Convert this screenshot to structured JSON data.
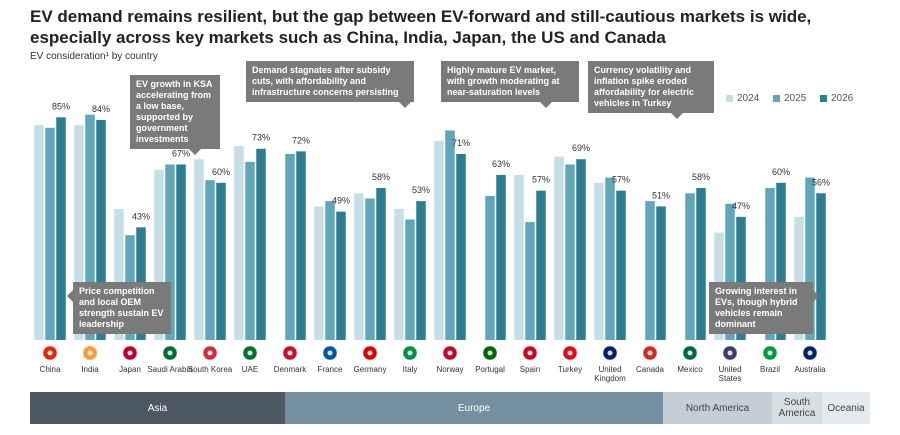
{
  "chart_data": {
    "type": "bar",
    "title": "EV demand remains resilient, but the gap between EV-forward and still-cautious markets is wide, especially across key markets such as China, India, Japan, the US and Canada",
    "subtitle": "EV consideration¹ by country",
    "categories": [
      "China",
      "India",
      "Japan",
      "Saudi Arabia",
      "South Korea",
      "UAE",
      "Denmark",
      "France",
      "Germany",
      "Italy",
      "Norway",
      "Portugal",
      "Spain",
      "Turkey",
      "United Kingdom",
      "Canada",
      "Mexico",
      "United States",
      "Brazil",
      "Australia"
    ],
    "series": [
      {
        "name": "2024",
        "color": "#c6dfe7",
        "values": [
          82,
          82,
          50,
          65,
          69,
          74,
          null,
          51,
          56,
          50,
          76,
          null,
          63,
          70,
          60,
          null,
          null,
          41,
          null,
          47
        ]
      },
      {
        "name": "2025",
        "color": "#5fa6ba",
        "values": [
          81,
          86,
          40,
          67,
          61,
          68,
          71,
          53,
          54,
          46,
          80,
          55,
          45,
          67,
          62,
          53,
          56,
          52,
          58,
          62
        ]
      },
      {
        "name": "2026",
        "color": "#2e7d93",
        "values": [
          85,
          84,
          43,
          67,
          60,
          73,
          72,
          49,
          58,
          53,
          71,
          63,
          57,
          69,
          57,
          51,
          58,
          47,
          60,
          56
        ],
        "value_labels": [
          "85%",
          "84%",
          "43%",
          "67%",
          "60%",
          "73%",
          "72%",
          "49%",
          "58%",
          "53%",
          "71%",
          "63%",
          "57%",
          "69%",
          "57%",
          "51%",
          "58%",
          "47%",
          "60%",
          "56%"
        ]
      }
    ],
    "annotations": [
      "EV growth in KSA accelerating from a low base, supported by government investments",
      "Demand stagnates after subsidy cuts, with affordability and infrastructure concerns persisting",
      "Highly mature EV market, with growth moderating at near-saturation levels",
      "Currency volatility and inflation spike eroded affordability for electric vehicles in Turkey",
      "Price competition and local OEM strength sustain EV leadership",
      "Growing interest in EVs, though hybrid vehicles remain dominant"
    ],
    "regions": [
      "Asia",
      "Europe",
      "North America",
      "South America",
      "Oceania"
    ]
  }
}
